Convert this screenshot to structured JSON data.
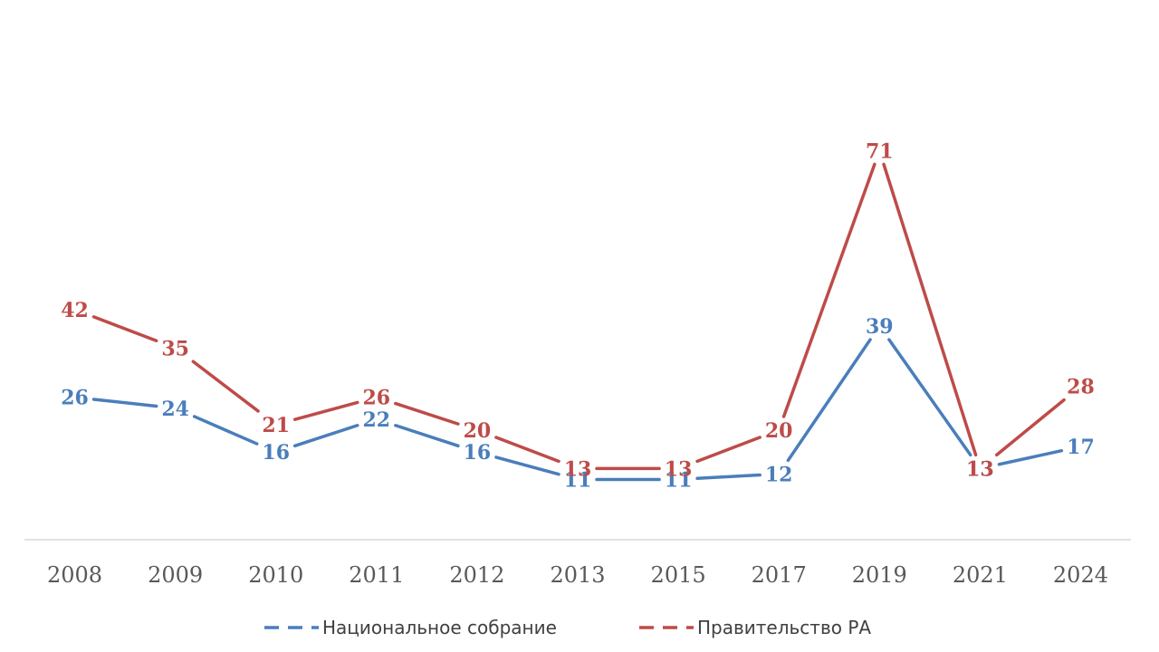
{
  "chart_data": {
    "type": "line",
    "categories": [
      "2008",
      "2009",
      "2010",
      "2011",
      "2012",
      "2013",
      "2015",
      "2017",
      "2019",
      "2021",
      "2024"
    ],
    "series": [
      {
        "name": "Национальное собрание",
        "color": "#4a7ebb",
        "values": [
          26,
          24,
          16,
          22,
          16,
          11,
          11,
          12,
          39,
          13,
          17
        ]
      },
      {
        "name": "Правительство РА",
        "color": "#be4b48",
        "values": [
          42,
          35,
          21,
          26,
          20,
          13,
          13,
          20,
          71,
          13,
          28
        ]
      }
    ],
    "ylim": [
      0,
      80
    ],
    "grid": false,
    "legend_position": "bottom",
    "data_labels": true,
    "axis_color": "#d9d9d9"
  }
}
